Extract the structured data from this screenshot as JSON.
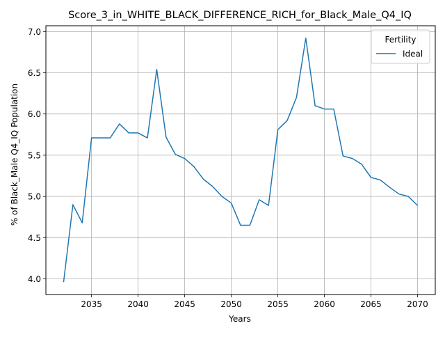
{
  "chart_data": {
    "type": "line",
    "title": "Score_3_in_WHITE_BLACK_DIFFERENCE_RICH_for_Black_Male_Q4_IQ",
    "xlabel": "Years",
    "ylabel": "% of Black_Male Q4_IQ Population",
    "xlim": [
      2030.1,
      2071.9
    ],
    "ylim": [
      3.81,
      7.07
    ],
    "grid": true,
    "legend_title": "Fertility",
    "legend_position": "top-right",
    "x_ticks": [
      2035,
      2040,
      2045,
      2050,
      2055,
      2060,
      2065,
      2070
    ],
    "y_ticks": [
      4.0,
      4.5,
      5.0,
      5.5,
      6.0,
      6.5,
      7.0
    ],
    "x_tick_labels": [
      "2035",
      "2040",
      "2045",
      "2050",
      "2055",
      "2060",
      "2065",
      "2070"
    ],
    "y_tick_labels": [
      "4.0",
      "4.5",
      "5.0",
      "5.5",
      "6.0",
      "6.5",
      "7.0"
    ],
    "x": [
      2032,
      2033,
      2034,
      2035,
      2036,
      2037,
      2038,
      2039,
      2040,
      2041,
      2042,
      2043,
      2044,
      2045,
      2046,
      2047,
      2048,
      2049,
      2050,
      2051,
      2052,
      2053,
      2054,
      2055,
      2056,
      2057,
      2058,
      2059,
      2060,
      2061,
      2062,
      2063,
      2064,
      2065,
      2066,
      2067,
      2068,
      2069,
      2070
    ],
    "series": [
      {
        "name": "Ideal",
        "color": "#1f77b4",
        "values": [
          3.96,
          4.9,
          4.68,
          5.71,
          5.71,
          5.71,
          5.88,
          5.77,
          5.77,
          5.71,
          6.54,
          5.72,
          5.51,
          5.46,
          5.36,
          5.21,
          5.12,
          5.0,
          4.92,
          4.65,
          4.65,
          4.96,
          4.89,
          5.81,
          5.92,
          6.2,
          6.92,
          6.1,
          6.06,
          6.06,
          5.49,
          5.46,
          5.39,
          5.23,
          5.2,
          5.11,
          5.03,
          5.0,
          4.89
        ]
      }
    ]
  }
}
